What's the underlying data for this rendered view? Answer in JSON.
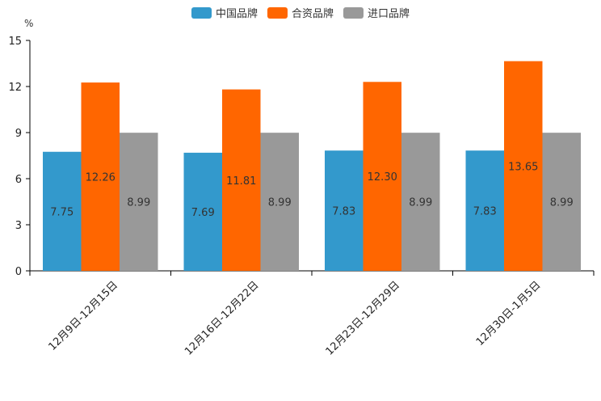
{
  "chart_data": {
    "type": "bar",
    "unit": "%",
    "categories": [
      "12月9日-12月15日",
      "12月16日-12月22日",
      "12月23日-12月29日",
      "12月30日-1月5日"
    ],
    "series": [
      {
        "name": "中国品牌",
        "color": "#3399cc",
        "values": [
          7.75,
          7.69,
          7.83,
          7.83
        ]
      },
      {
        "name": "合资品牌",
        "color": "#ff6600",
        "values": [
          12.26,
          11.81,
          12.3,
          13.65
        ]
      },
      {
        "name": "进口品牌",
        "color": "#999999",
        "values": [
          8.99,
          8.99,
          8.99,
          8.99
        ]
      }
    ],
    "ylim": [
      0,
      15
    ],
    "yticks": [
      "0",
      "3",
      "6",
      "9",
      "12",
      "15"
    ],
    "legend_position": "top-center"
  }
}
